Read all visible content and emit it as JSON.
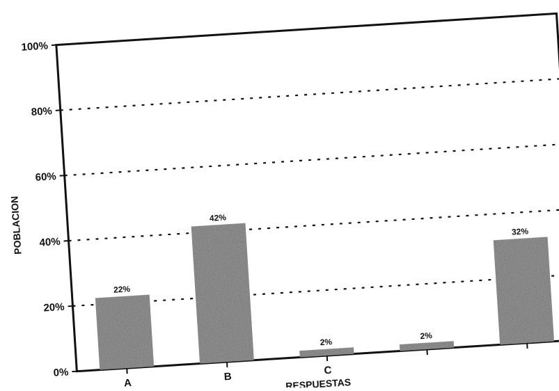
{
  "chart_data": {
    "type": "bar",
    "categories": [
      "A",
      "B",
      "C",
      "",
      ""
    ],
    "values": [
      22,
      42,
      2,
      2,
      32
    ],
    "data_labels": [
      "22%",
      "42%",
      "2%",
      "2%",
      "32%"
    ],
    "ylabel": "POBLACION",
    "xlabel": "RESPUESTAS",
    "ylim": [
      0,
      100
    ],
    "y_ticks": [
      {
        "value": 0,
        "label": "0%"
      },
      {
        "value": 20,
        "label": "20%"
      },
      {
        "value": 40,
        "label": "40%"
      },
      {
        "value": 60,
        "label": "60%"
      },
      {
        "value": 80,
        "label": "80%"
      },
      {
        "value": 100,
        "label": "100%"
      }
    ],
    "grid": "dotted horizontal at 20, 40, 60, 80",
    "bar_color": "#9a9a9a"
  }
}
